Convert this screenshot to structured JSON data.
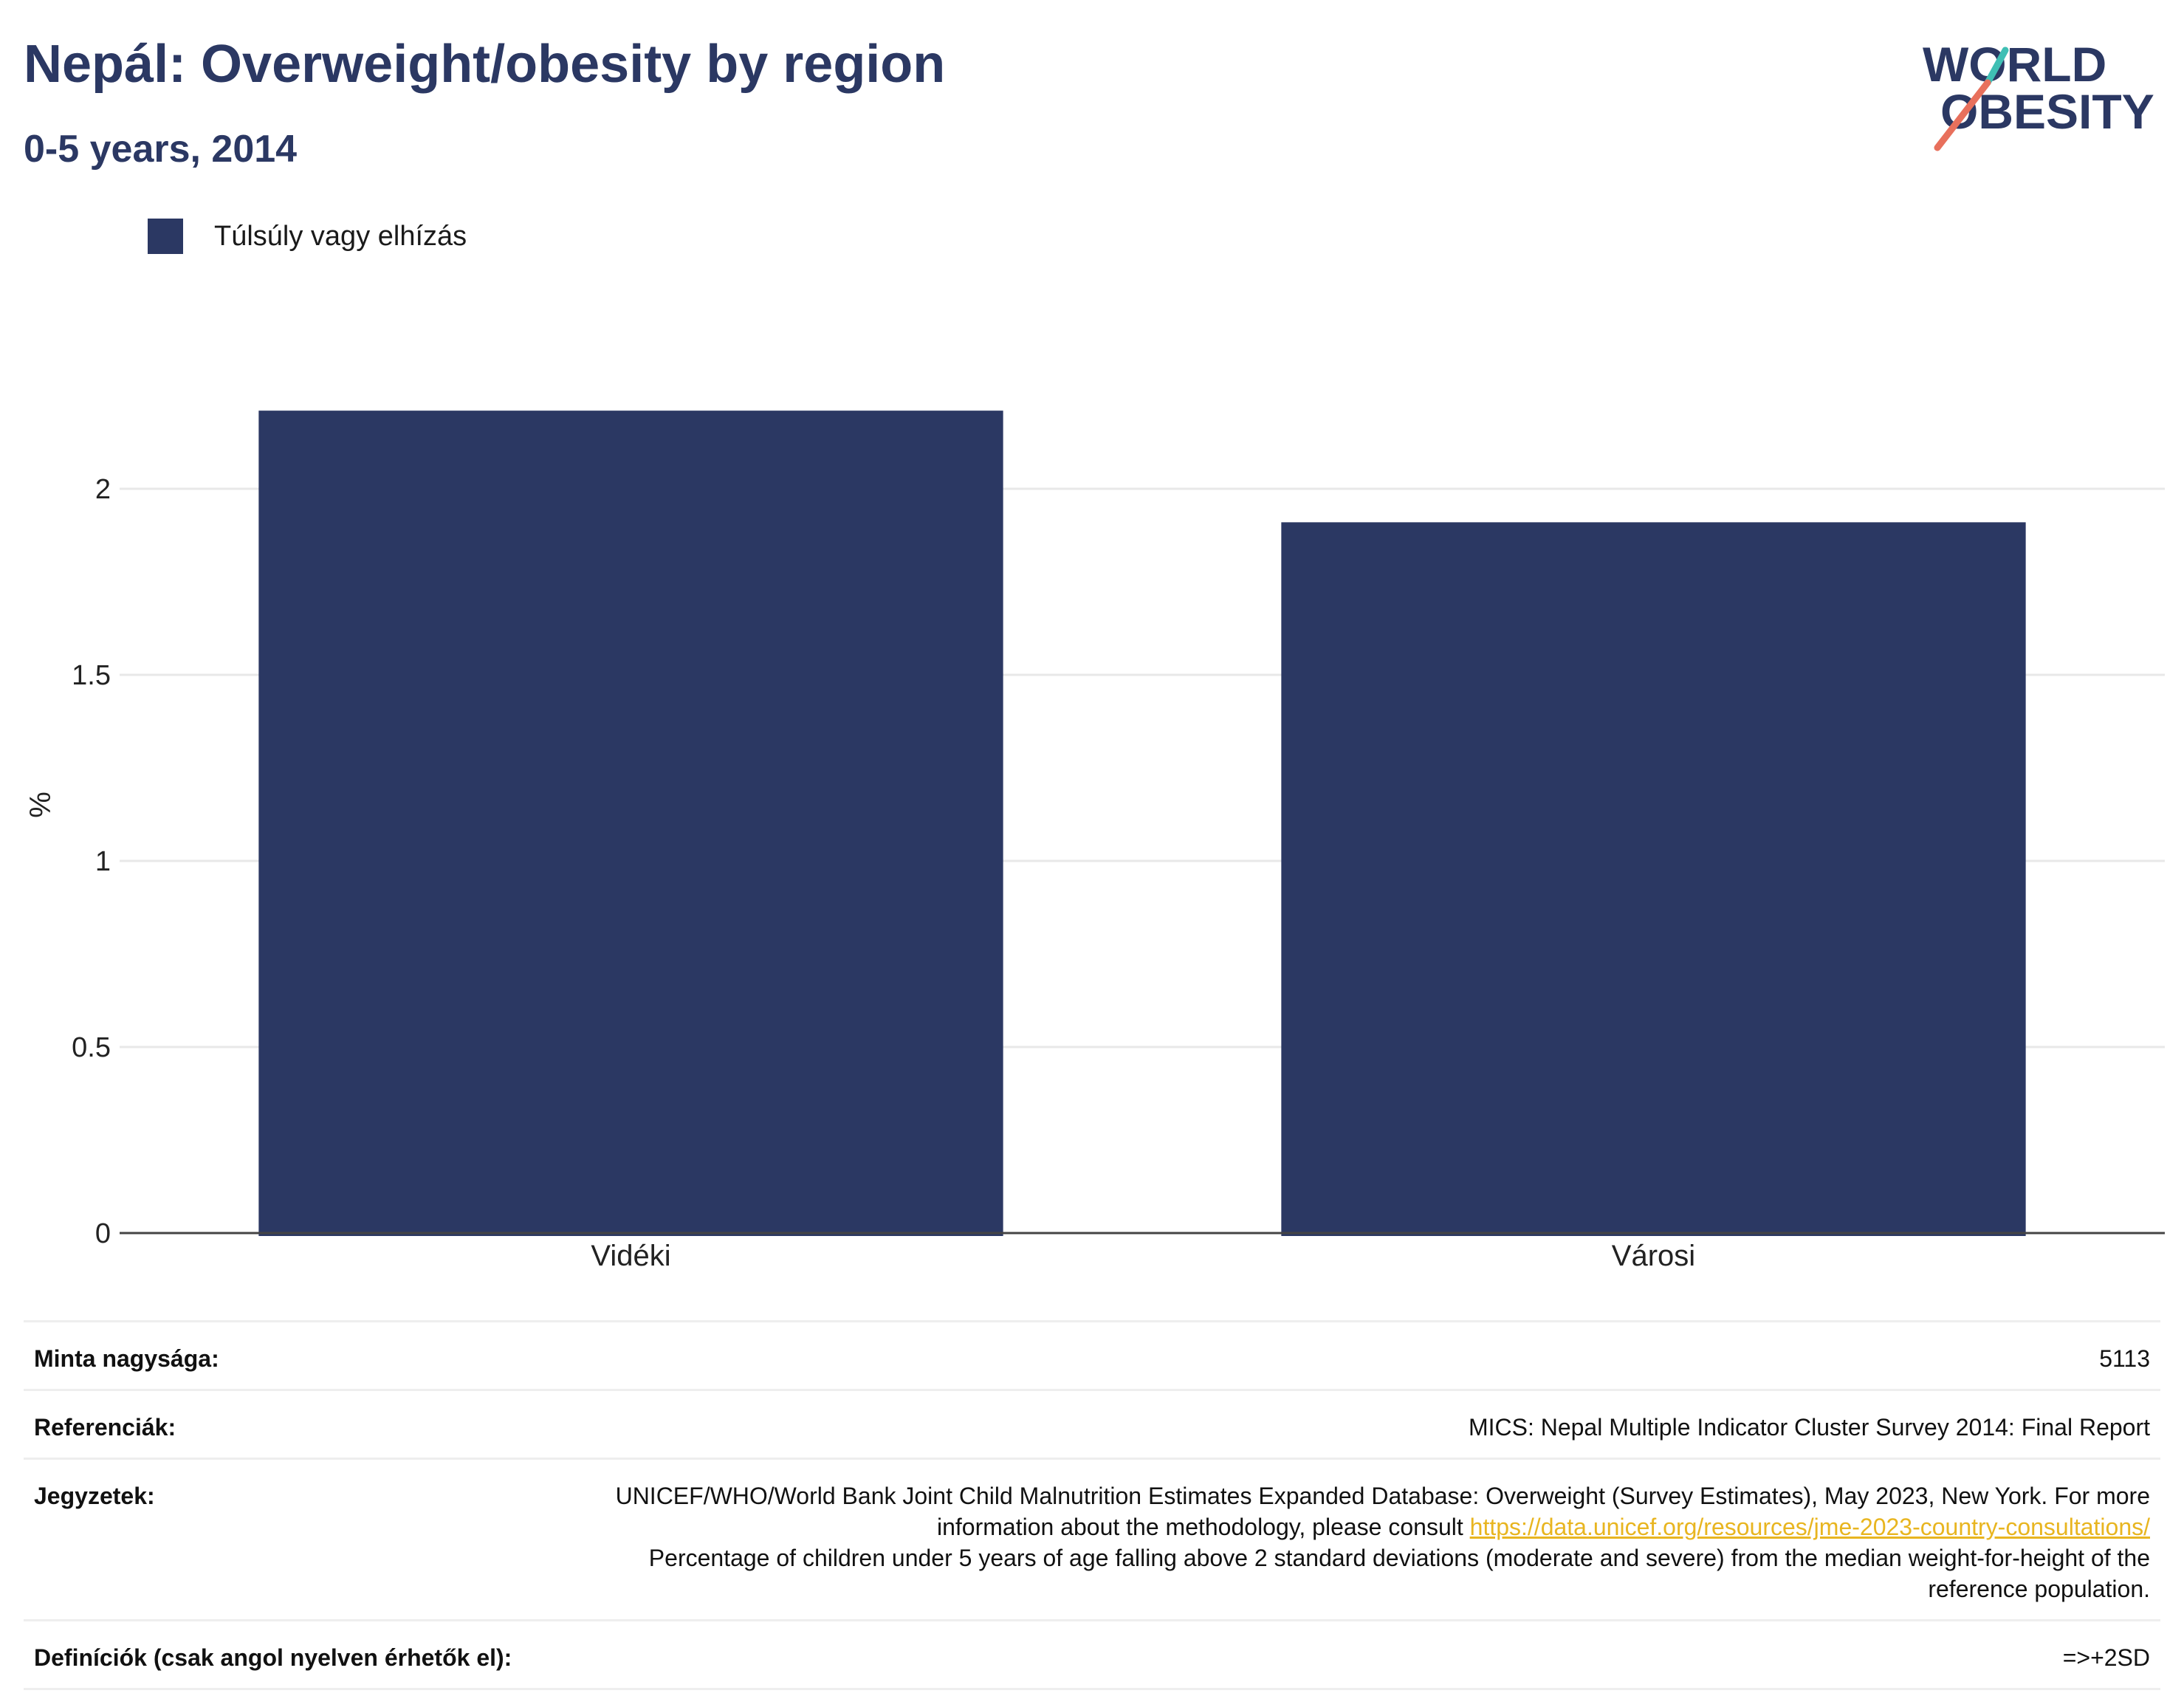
{
  "header": {
    "title": "Nepál: Overweight/obesity by region",
    "subtitle": "0-5 years, 2014"
  },
  "logo": {
    "line1": "WORLD",
    "line2": "OBESITY",
    "icon": "world-obesity-logo"
  },
  "colors": {
    "bar": "#2b3863",
    "title": "#2b3863",
    "link": "#e8b520",
    "logo_teal": "#3fbfb4",
    "logo_coral": "#e8705c"
  },
  "chart_data": {
    "type": "bar",
    "categories": [
      "Vidéki",
      "Városi"
    ],
    "series": [
      {
        "name": "Túlsúly vagy elhízás",
        "values": [
          2.21,
          1.91
        ]
      }
    ],
    "title": "Nepál: Overweight/obesity by region",
    "subtitle": "0-5 years, 2014",
    "xlabel": "",
    "ylabel": "%",
    "ylim": [
      0,
      2.3
    ],
    "yticks": [
      0,
      0.5,
      1,
      1.5,
      2
    ],
    "ytick_labels": [
      "0",
      "0.5",
      "1",
      "1.5",
      "2"
    ],
    "grid": true,
    "legend_position": "top-left"
  },
  "info": {
    "sample_label": "Minta nagysága:",
    "sample_value": "5113",
    "refs_label": "Referenciák:",
    "refs_value": "MICS: Nepal Multiple Indicator Cluster Survey 2014: Final Report",
    "notes_label": "Jegyzetek:",
    "notes_text1": "UNICEF/WHO/World Bank Joint Child Malnutrition Estimates Expanded Database: Overweight (Survey Estimates), May 2023, New York. For more information about the methodology, please consult ",
    "notes_link": "https://data.unicef.org/resources/jme-2023-country-consultations/",
    "notes_text2": "Percentage of children under 5 years of age falling above 2 standard deviations (moderate and severe) from the median weight-for-height of the reference population.",
    "defs_label": "Definíciók (csak angol nyelven érhetők el):",
    "defs_value": "=>+2SD"
  }
}
